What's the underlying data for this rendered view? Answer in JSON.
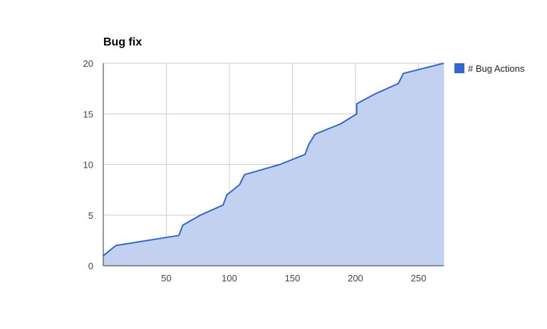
{
  "chart_data": {
    "type": "area",
    "title": "Bug fix",
    "xlabel": "",
    "ylabel": "",
    "xlim": [
      0,
      270
    ],
    "ylim": [
      0,
      20
    ],
    "x_ticks": [
      50,
      100,
      150,
      200,
      250
    ],
    "y_ticks": [
      0,
      5,
      10,
      15,
      20
    ],
    "grid": true,
    "legend_position": "right",
    "series": [
      {
        "name": "# Bug Actions",
        "color": "#3366cc",
        "fill_color": "#c3d1f0",
        "x": [
          0,
          10,
          60,
          63,
          77,
          95,
          98,
          108,
          112,
          140,
          160,
          163,
          168,
          188,
          201,
          201,
          216,
          234,
          238,
          270
        ],
        "y": [
          1,
          2,
          3,
          4,
          5,
          6,
          7,
          8,
          9,
          10,
          11,
          12,
          13,
          14,
          15,
          16,
          17,
          18,
          19,
          20
        ]
      }
    ]
  }
}
